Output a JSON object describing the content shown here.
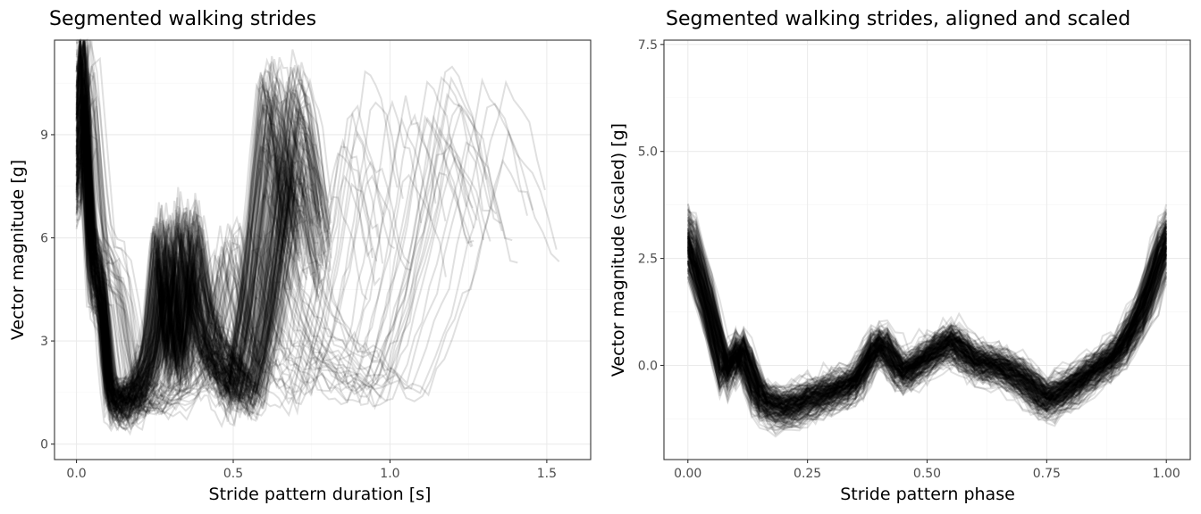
{
  "chart_data": [
    {
      "type": "line",
      "title": "Segmented walking strides",
      "xlabel": "Stride pattern duration [s]",
      "ylabel": "Vector magnitude [g]",
      "xlim": [
        -0.07,
        1.64
      ],
      "ylim": [
        -0.45,
        11.75
      ],
      "x_ticks": [
        0.0,
        0.5,
        1.0,
        1.5
      ],
      "x_tick_labels": [
        "0.0",
        "0.5",
        "1.0",
        "1.5"
      ],
      "y_ticks": [
        0,
        3,
        6,
        9
      ],
      "y_tick_labels": [
        "0",
        "3",
        "6",
        "9"
      ],
      "grid": true,
      "line_color": "#000000",
      "line_alpha": 0.12,
      "representative_stride": {
        "x": [
          0.0,
          0.02,
          0.05,
          0.08,
          0.11,
          0.15,
          0.2,
          0.25,
          0.29,
          0.33,
          0.37,
          0.41,
          0.45,
          0.5,
          0.55,
          0.6,
          0.64,
          0.68,
          0.72,
          0.76
        ],
        "y": [
          8.0,
          10.5,
          5.0,
          4.5,
          1.3,
          1.1,
          1.4,
          2.5,
          5.5,
          2.0,
          5.8,
          3.5,
          2.5,
          2.0,
          1.3,
          3.5,
          6.0,
          9.0,
          8.0,
          5.5
        ]
      }
    },
    {
      "type": "line",
      "title": "Segmented walking strides, aligned and scaled",
      "xlabel": "Stride pattern phase",
      "ylabel": "Vector magnitude (scaled) [g]",
      "xlim": [
        -0.05,
        1.05
      ],
      "ylim": [
        -2.2,
        7.6
      ],
      "x_ticks": [
        0.0,
        0.25,
        0.5,
        0.75,
        1.0
      ],
      "x_tick_labels": [
        "0.00",
        "0.25",
        "0.50",
        "0.75",
        "1.00"
      ],
      "y_ticks": [
        0.0,
        2.5,
        5.0,
        7.5
      ],
      "y_tick_labels": [
        "0.0",
        "2.5",
        "5.0",
        "7.5"
      ],
      "grid": true,
      "line_color": "#000000",
      "line_alpha": 0.12,
      "representative_stride": {
        "x": [
          0.0,
          0.04,
          0.08,
          0.11,
          0.15,
          0.2,
          0.25,
          0.3,
          0.35,
          0.4,
          0.45,
          0.5,
          0.55,
          0.6,
          0.65,
          0.7,
          0.75,
          0.8,
          0.85,
          0.9,
          0.95,
          1.0
        ],
        "y": [
          3.0,
          1.5,
          -0.3,
          0.5,
          -0.8,
          -1.0,
          -0.8,
          -0.6,
          -0.4,
          0.6,
          -0.2,
          0.2,
          0.6,
          0.1,
          0.0,
          -0.3,
          -0.8,
          -0.5,
          -0.1,
          0.3,
          1.3,
          3.0
        ]
      }
    }
  ]
}
